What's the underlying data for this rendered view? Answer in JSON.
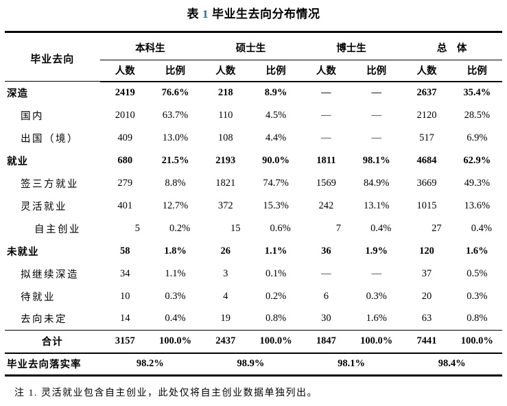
{
  "title": {
    "prefix": "表",
    "number": "1",
    "rest": "毕业生去向分布情况",
    "number_color": "#2A6DB5"
  },
  "header": {
    "row_label": "毕业去向",
    "groups": [
      "本科生",
      "硕士生",
      "博士生",
      "总　体"
    ],
    "subheaders": [
      "人数",
      "比例"
    ]
  },
  "table": {
    "rows": [
      {
        "label": "深造",
        "indent": 0,
        "bold": true,
        "cells": [
          "2419",
          "76.6%",
          "218",
          "8.9%",
          "—",
          "—",
          "2637",
          "35.4%"
        ]
      },
      {
        "label": "国内",
        "indent": 1,
        "bold": false,
        "cells": [
          "2010",
          "63.7%",
          "110",
          "4.5%",
          "—",
          "—",
          "2120",
          "28.5%"
        ]
      },
      {
        "label": "出国（境）",
        "indent": 1,
        "bold": false,
        "cells": [
          "409",
          "13.0%",
          "108",
          "4.4%",
          "—",
          "—",
          "517",
          "6.9%"
        ]
      },
      {
        "label": "就业",
        "indent": 0,
        "bold": true,
        "cells": [
          "680",
          "21.5%",
          "2193",
          "90.0%",
          "1811",
          "98.1%",
          "4684",
          "62.9%"
        ]
      },
      {
        "label": "签三方就业",
        "indent": 1,
        "bold": false,
        "cells": [
          "279",
          "8.8%",
          "1821",
          "74.7%",
          "1569",
          "84.9%",
          "3669",
          "49.3%"
        ]
      },
      {
        "label": "灵活就业",
        "indent": 1,
        "bold": false,
        "cells": [
          "401",
          "12.7%",
          "372",
          "15.3%",
          "242",
          "13.1%",
          "1015",
          "13.6%"
        ]
      },
      {
        "label": "自主创业",
        "indent": 2,
        "bold": false,
        "align": "right",
        "cells": [
          "5",
          "0.2%",
          "15",
          "0.6%",
          "7",
          "0.4%",
          "27",
          "0.4%"
        ]
      },
      {
        "label": "未就业",
        "indent": 0,
        "bold": true,
        "cells": [
          "58",
          "1.8%",
          "26",
          "1.1%",
          "36",
          "1.9%",
          "120",
          "1.6%"
        ]
      },
      {
        "label": "拟继续深造",
        "indent": 1,
        "bold": false,
        "cells": [
          "34",
          "1.1%",
          "3",
          "0.1%",
          "—",
          "—",
          "37",
          "0.5%"
        ]
      },
      {
        "label": "待就业",
        "indent": 1,
        "bold": false,
        "cells": [
          "10",
          "0.3%",
          "4",
          "0.2%",
          "6",
          "0.3%",
          "20",
          "0.3%"
        ]
      },
      {
        "label": "去向未定",
        "indent": 1,
        "bold": false,
        "cells": [
          "14",
          "0.4%",
          "19",
          "0.8%",
          "30",
          "1.6%",
          "63",
          "0.8%"
        ]
      },
      {
        "label": "合计",
        "indent": 0,
        "bold": true,
        "total": true,
        "center_label": true,
        "cells": [
          "3157",
          "100.0%",
          "2437",
          "100.0%",
          "1847",
          "100.0%",
          "7441",
          "100.0%"
        ]
      }
    ],
    "footer": {
      "label": "毕业去向落实率",
      "values": [
        "98.2%",
        "98.9%",
        "98.1%",
        "98.4%"
      ]
    }
  },
  "note": "注 1. 灵活就业包含自主创业，此处仅将自主创业数据单独列出。"
}
